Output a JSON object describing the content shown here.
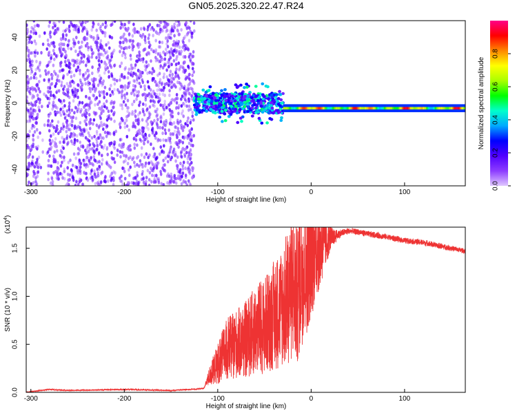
{
  "title": "GN05.2025.320.22.47.R24",
  "chart_data": [
    {
      "type": "heatmap",
      "xlabel": "Height of straight line (km)",
      "ylabel": "Frequency (Hz)",
      "xlim": [
        -305,
        165
      ],
      "ylim": [
        -50,
        50
      ],
      "x_ticks": [
        -300,
        -200,
        -100,
        0,
        100
      ],
      "y_ticks": [
        -40,
        -20,
        0,
        20,
        40
      ],
      "colorbar": {
        "label": "Normalized spectral amplitude",
        "range": [
          0,
          1
        ],
        "ticks": [
          0.0,
          0.2,
          0.4,
          0.6,
          0.8
        ],
        "colormap": [
          "#e0c8ff",
          "#8c3cff",
          "#5000ff",
          "#0000ff",
          "#00aaff",
          "#00ffcc",
          "#00ff00",
          "#aaff00",
          "#ffff00",
          "#ff8800",
          "#ff0000",
          "#ff0088"
        ]
      },
      "regions": [
        {
          "x_range": [
            -305,
            -125
          ],
          "freq_range": [
            -50,
            50
          ],
          "amplitude": 0.12,
          "description_values": "broadband scattered noise"
        },
        {
          "x_range": [
            -125,
            -30
          ],
          "freq_center": 0,
          "freq_halfwidth": 6,
          "amplitude": 0.3
        },
        {
          "x_range": [
            -30,
            165
          ],
          "freq_center": -3,
          "freq_halfwidth": 1.5,
          "amplitude": 0.95
        }
      ]
    },
    {
      "type": "line",
      "xlabel": "Height of straight line (km)",
      "ylabel": "SNR (10 * v/v)",
      "scale_label": "(x10",
      "scale_exp": "4",
      "scale_close": ")",
      "xlim": [
        -305,
        165
      ],
      "ylim": [
        0,
        1.72
      ],
      "x_ticks": [
        -300,
        -200,
        -100,
        0,
        100
      ],
      "y_ticks": [
        0.0,
        0.5,
        1.0,
        1.5
      ],
      "series": [
        {
          "color": "#ee3333",
          "x": [
            -305,
            -290,
            -280,
            -260,
            -200,
            -150,
            -130,
            -115,
            -110,
            -100,
            -90,
            -80,
            -70,
            -60,
            -50,
            -40,
            -30,
            -20,
            -15,
            -10,
            -5,
            0,
            5,
            10,
            15,
            20,
            25,
            30,
            40,
            50,
            60,
            80,
            100,
            120,
            140,
            160,
            165
          ],
          "y": [
            0.0,
            0.02,
            0.03,
            0.02,
            0.03,
            0.02,
            0.03,
            0.04,
            0.15,
            0.3,
            0.45,
            0.5,
            0.55,
            0.65,
            0.7,
            0.8,
            0.9,
            1.1,
            1.0,
            1.3,
            1.3,
            1.4,
            1.5,
            1.5,
            1.55,
            1.6,
            1.62,
            1.65,
            1.68,
            1.67,
            1.65,
            1.62,
            1.58,
            1.56,
            1.52,
            1.48,
            1.47
          ],
          "noise_amplitude_pct": [
            0,
            0,
            0,
            0,
            0,
            0,
            0,
            0,
            0.6,
            0.8,
            0.8,
            0.8,
            0.8,
            0.8,
            0.8,
            0.8,
            0.8,
            0.8,
            0.8,
            0.7,
            0.6,
            0.5,
            0.4,
            0.3,
            0.2,
            0.1,
            0.05,
            0.03,
            0.02,
            0.02,
            0.02,
            0.02,
            0.02,
            0.02,
            0.02,
            0.02,
            0.02
          ]
        }
      ]
    }
  ]
}
